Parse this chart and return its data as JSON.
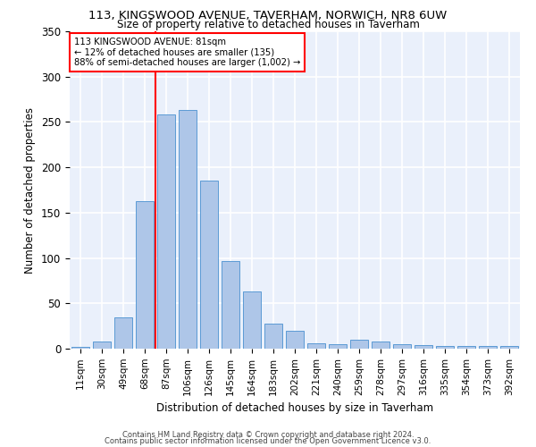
{
  "title1": "113, KINGSWOOD AVENUE, TAVERHAM, NORWICH, NR8 6UW",
  "title2": "Size of property relative to detached houses in Taverham",
  "xlabel": "Distribution of detached houses by size in Taverham",
  "ylabel": "Number of detached properties",
  "categories": [
    "11sqm",
    "30sqm",
    "49sqm",
    "68sqm",
    "87sqm",
    "106sqm",
    "126sqm",
    "145sqm",
    "164sqm",
    "183sqm",
    "202sqm",
    "221sqm",
    "240sqm",
    "259sqm",
    "278sqm",
    "297sqm",
    "316sqm",
    "335sqm",
    "354sqm",
    "373sqm",
    "392sqm"
  ],
  "values": [
    2,
    8,
    35,
    163,
    258,
    263,
    185,
    97,
    63,
    28,
    20,
    6,
    5,
    10,
    8,
    5,
    4,
    3,
    3,
    3,
    3
  ],
  "bar_color": "#aec6e8",
  "bar_edge_color": "#5b9bd5",
  "bg_color": "#eaf0fb",
  "grid_color": "#ffffff",
  "red_line_index": 4,
  "annotation_line1": "113 KINGSWOOD AVENUE: 81sqm",
  "annotation_line2": "← 12% of detached houses are smaller (135)",
  "annotation_line3": "88% of semi-detached houses are larger (1,002) →",
  "footer1": "Contains HM Land Registry data © Crown copyright and database right 2024.",
  "footer2": "Contains public sector information licensed under the Open Government Licence v3.0.",
  "ylim": [
    0,
    350
  ]
}
